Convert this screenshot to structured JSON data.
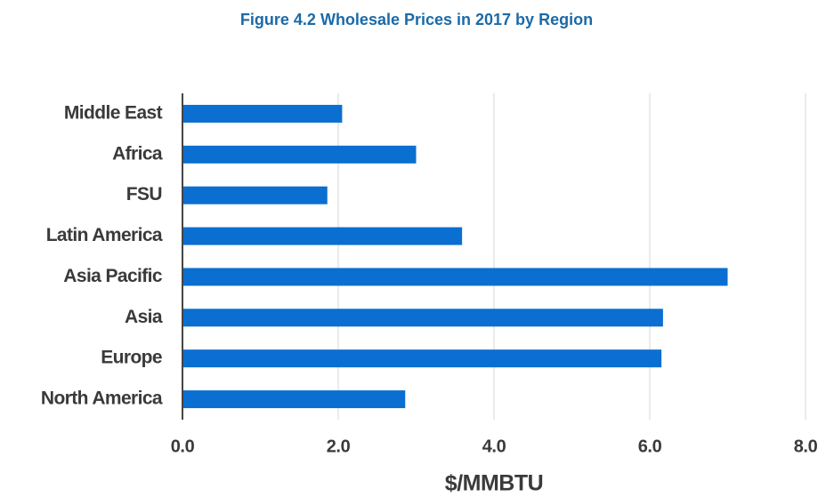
{
  "chart_data": {
    "type": "barh",
    "title": "Figure 4.2 Wholesale Prices in 2017 by Region",
    "categories": [
      "Middle East",
      "Africa",
      "FSU",
      "Latin America",
      "Asia Pacific",
      "Asia",
      "Europe",
      "North America"
    ],
    "values": [
      2.05,
      3.0,
      1.86,
      3.59,
      7.0,
      6.17,
      6.15,
      2.86
    ],
    "color": "#0a6fd0",
    "xlabel": "$/MMBTU",
    "xlim": [
      0,
      8
    ],
    "xticks": [
      {
        "value": 0,
        "label": "0.0"
      },
      {
        "value": 2,
        "label": "2.0"
      },
      {
        "value": 4,
        "label": "4.0"
      },
      {
        "value": 6,
        "label": "6.0"
      },
      {
        "value": 8,
        "label": "8.0"
      }
    ],
    "grid": true
  }
}
